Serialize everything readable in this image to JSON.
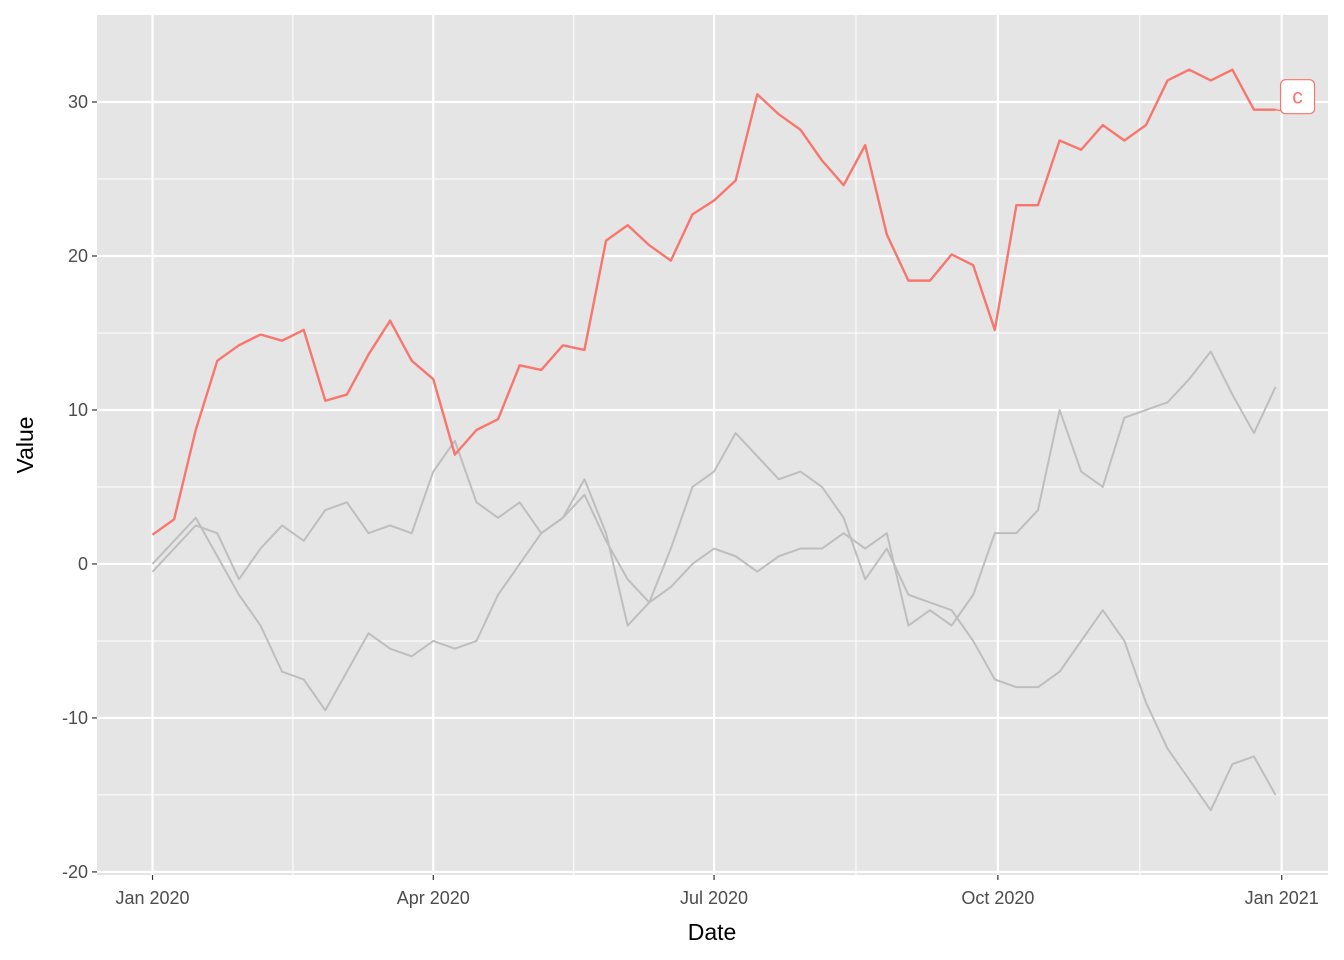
{
  "chart_data": {
    "type": "line",
    "x_label": "Date",
    "y_label": "Value",
    "x": [
      "2020-01-01",
      "2020-01-08",
      "2020-01-15",
      "2020-01-22",
      "2020-01-29",
      "2020-02-05",
      "2020-02-12",
      "2020-02-19",
      "2020-02-26",
      "2020-03-04",
      "2020-03-11",
      "2020-03-18",
      "2020-03-25",
      "2020-04-01",
      "2020-04-08",
      "2020-04-15",
      "2020-04-22",
      "2020-04-29",
      "2020-05-06",
      "2020-05-13",
      "2020-05-20",
      "2020-05-27",
      "2020-06-03",
      "2020-06-10",
      "2020-06-17",
      "2020-06-24",
      "2020-07-01",
      "2020-07-08",
      "2020-07-15",
      "2020-07-22",
      "2020-07-29",
      "2020-08-05",
      "2020-08-12",
      "2020-08-19",
      "2020-08-26",
      "2020-09-02",
      "2020-09-09",
      "2020-09-16",
      "2020-09-23",
      "2020-09-30",
      "2020-10-07",
      "2020-10-14",
      "2020-10-21",
      "2020-10-28",
      "2020-11-04",
      "2020-11-11",
      "2020-11-18",
      "2020-11-25",
      "2020-12-02",
      "2020-12-09",
      "2020-12-16",
      "2020-12-23",
      "2020-12-30"
    ],
    "series": [
      {
        "color": "#bebebe",
        "values": [
          0,
          1.5,
          3,
          0.5,
          -2,
          -4,
          -7,
          -7.5,
          -9.5,
          -7,
          -4.5,
          -5.5,
          -6,
          -5,
          -5.5,
          -5,
          -2,
          0,
          2,
          3,
          4.5,
          1.5,
          -1,
          -2.5,
          1,
          5,
          6,
          8.5,
          7,
          5.5,
          6,
          5,
          3,
          -1,
          1,
          -2,
          -2.5,
          -3,
          -5,
          -7.5,
          -8,
          -8,
          -7,
          -5,
          -3,
          -5,
          -9,
          -12,
          -14,
          -16,
          -13,
          -12.5,
          -15
        ]
      },
      {
        "color": "#bebebe",
        "values": [
          -0.5,
          1,
          2.5,
          2,
          -1,
          1,
          2.5,
          1.5,
          3.5,
          4,
          2,
          2.5,
          2,
          6,
          8,
          4,
          3,
          4,
          2,
          3,
          5.5,
          2,
          -4,
          -2.5,
          -1.5,
          0,
          1,
          0.5,
          -0.5,
          0.5,
          1,
          1,
          2,
          1,
          2,
          -4,
          -3,
          -4,
          -2,
          2,
          2,
          3.5,
          10,
          6,
          5,
          9.5,
          10,
          10.5,
          12,
          13.8,
          11,
          8.5,
          11.5
        ]
      },
      {
        "name": "c",
        "color": "#f8766d",
        "values": [
          1.9,
          2.9,
          8.7,
          13.2,
          14.2,
          14.9,
          14.5,
          15.2,
          10.6,
          11,
          13.6,
          15.8,
          13.2,
          12,
          7.1,
          8.7,
          9.4,
          12.9,
          12.6,
          14.2,
          13.9,
          21,
          22,
          20.7,
          19.7,
          22.7,
          23.6,
          24.9,
          30.5,
          29.2,
          28.2,
          26.2,
          24.6,
          27.2,
          21.4,
          18.4,
          18.4,
          20.1,
          19.4,
          15.2,
          23.3,
          23.3,
          27.5,
          26.9,
          28.5,
          27.5,
          28.5,
          31.4,
          32.1,
          31.4,
          32.1,
          29.5,
          29.5
        ]
      }
    ],
    "xlim": [
      "2019-12-14",
      "2021-01-16"
    ],
    "xticks": [
      {
        "value": "2020-01-01",
        "label": "Jan 2020"
      },
      {
        "value": "2020-04-01",
        "label": "Apr 2020"
      },
      {
        "value": "2020-07-01",
        "label": "Jul 2020"
      },
      {
        "value": "2020-10-01",
        "label": "Oct 2020"
      },
      {
        "value": "2021-01-01",
        "label": "Jan 2021"
      }
    ],
    "ylim": [
      -20.2,
      35.65
    ],
    "yticks": [
      -20,
      -10,
      0,
      10,
      20,
      30
    ],
    "grid": true,
    "background": "#e5e5e5"
  }
}
